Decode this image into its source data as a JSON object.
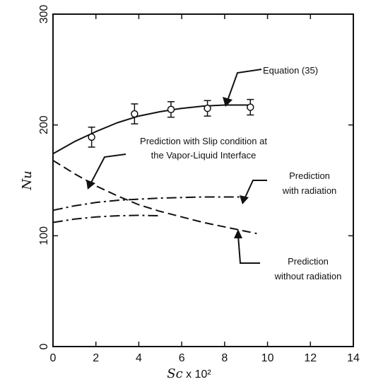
{
  "chart_data": {
    "type": "line",
    "title": "",
    "xlabel_italic": "Sc",
    "xlabel_suffix": " x 10²",
    "ylabel": "Nu",
    "xlim": [
      0,
      14
    ],
    "ylim": [
      0,
      300
    ],
    "x_ticks": [
      "0",
      "2",
      "4",
      "6",
      "8",
      "10",
      "12",
      "14"
    ],
    "y_ticks": [
      "0",
      "100",
      "200",
      "300"
    ],
    "grid": false,
    "series": [
      {
        "name": "Equation (35)",
        "style": "solid",
        "x": [
          0,
          1,
          2,
          3,
          4,
          5,
          6,
          7,
          8,
          9.2
        ],
        "y": [
          174,
          185,
          194,
          202,
          208,
          212,
          215,
          217,
          218,
          218
        ]
      },
      {
        "name": "Prediction with Slip condition at the Vapor-Liquid Interface",
        "style": "dashed",
        "x": [
          0,
          1,
          2,
          3,
          4,
          5,
          6,
          7,
          8,
          9,
          9.5
        ],
        "y": [
          168,
          156,
          145,
          136,
          128,
          122,
          117,
          112,
          108,
          104,
          102
        ]
      },
      {
        "name": "Prediction with radiation",
        "style": "dashdot",
        "x": [
          0,
          1,
          2,
          3,
          4,
          5,
          6,
          7,
          8,
          9
        ],
        "y": [
          123,
          127,
          130,
          132,
          133,
          134,
          134.5,
          135,
          135,
          135
        ]
      },
      {
        "name": "Prediction without radiation",
        "style": "dashdot",
        "x": [
          0,
          1,
          2,
          3,
          4,
          5
        ],
        "y": [
          112,
          115,
          117,
          118,
          118.5,
          118
        ]
      }
    ],
    "experimental_points": {
      "x": [
        1.8,
        3.8,
        5.5,
        7.2,
        9.2
      ],
      "y": [
        189,
        210,
        214,
        215,
        216
      ],
      "err": [
        9,
        9,
        7,
        7,
        7
      ]
    },
    "annotations": {
      "eq35": "Equation (35)",
      "slip_line1": "Prediction with Slip condition at",
      "slip_line2": "the Vapor-Liquid Interface",
      "withrad_line1": "Prediction",
      "withrad_line2": "with radiation",
      "withoutrad_line1": "Prediction",
      "withoutrad_line2": "without  radiation"
    }
  }
}
